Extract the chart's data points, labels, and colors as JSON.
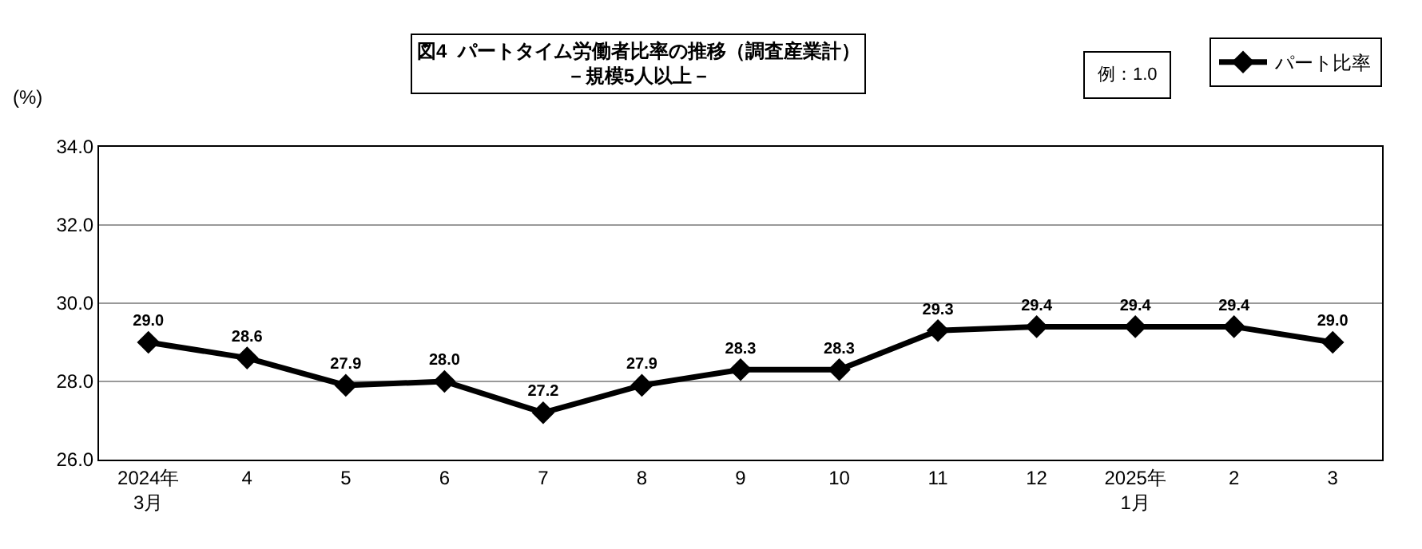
{
  "chart_data": {
    "type": "line",
    "title": "図4  パートタイム労働者比率の推移（調査産業計）",
    "subtitle": "－規模5人以上－",
    "ylabel": "(%)",
    "annotations": [
      "例：1.0"
    ],
    "categories": [
      "2024年\n3月",
      "4",
      "5",
      "6",
      "7",
      "8",
      "9",
      "10",
      "11",
      "12",
      "2025年\n1月",
      "2",
      "3"
    ],
    "series": [
      {
        "name": "パート比率",
        "color": "#000000",
        "values": [
          29.0,
          28.6,
          27.9,
          28.0,
          27.2,
          27.9,
          28.3,
          28.3,
          29.3,
          29.4,
          29.4,
          29.4,
          29.0
        ],
        "value_labels": [
          "29.0",
          "28.6",
          "27.9",
          "28.0",
          "27.2",
          "27.9",
          "28.3",
          "28.3",
          "29.3",
          "29.4",
          "29.4",
          "29.4",
          "29.0"
        ]
      }
    ],
    "ylim": [
      26.0,
      34.0
    ],
    "yticks": [
      {
        "value": 26,
        "label": "26.0"
      },
      {
        "value": 28,
        "label": "28.0"
      },
      {
        "value": 30,
        "label": "30.0"
      },
      {
        "value": 32,
        "label": "32.0"
      },
      {
        "value": 34,
        "label": "34.0"
      }
    ],
    "grid": "y",
    "legend": "top right",
    "marker": "diamond",
    "line_style": "solid"
  }
}
